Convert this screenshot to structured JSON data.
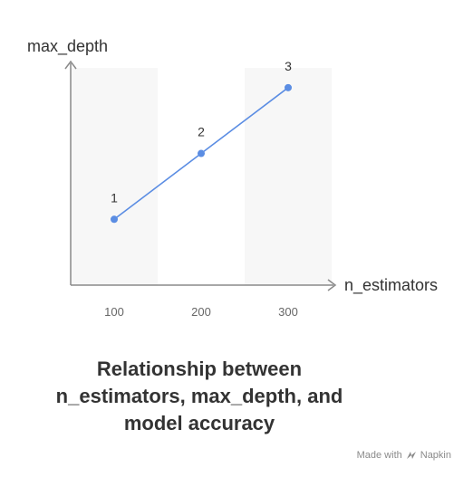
{
  "chart_data": {
    "type": "line",
    "title_lines": [
      "Relationship between",
      "n_estimators, max_depth, and",
      "model accuracy"
    ],
    "xlabel": "n_estimators",
    "ylabel": "max_depth",
    "categories": [
      "100",
      "200",
      "300"
    ],
    "x": [
      100,
      200,
      300
    ],
    "values": [
      1,
      2,
      3
    ],
    "point_labels": [
      "1",
      "2",
      "3"
    ],
    "xlim": [
      50,
      350
    ],
    "ylim": [
      0,
      3.3
    ],
    "grid": false,
    "line_color": "#5b8de3",
    "band_color": "#f7f7f7",
    "axis_color": "#8a8a8a"
  },
  "watermark": {
    "prefix": "Made with",
    "brand": "Napkin",
    "logo_icon": "napkin-logo-icon"
  }
}
